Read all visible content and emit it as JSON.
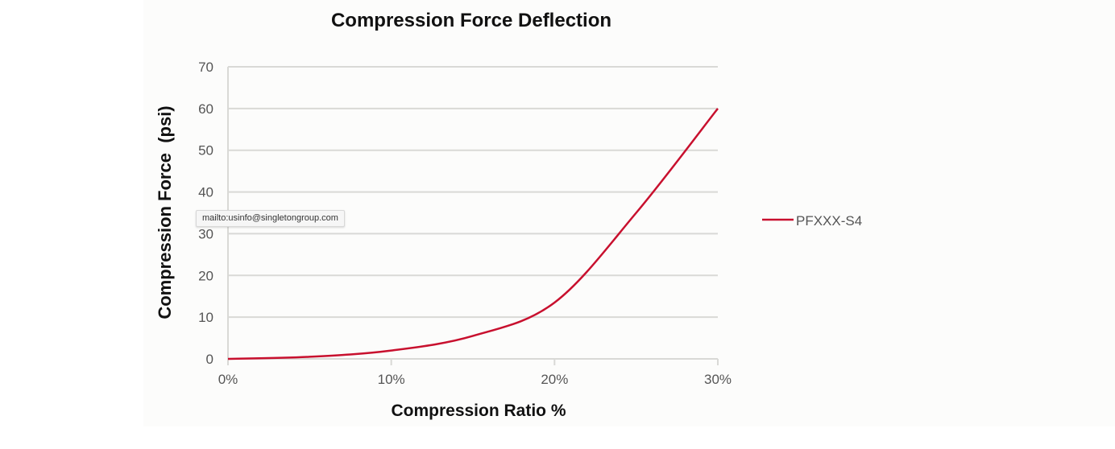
{
  "chart_data": {
    "type": "line",
    "title": "Compression Force Deflection",
    "xlabel": "Compression Ratio %",
    "ylabel": "Compression Force  (psi)",
    "x": [
      0,
      5,
      10,
      15,
      20,
      25,
      30
    ],
    "x_tick_labels": [
      "0%",
      "10%",
      "20%",
      "30%"
    ],
    "x_ticks": [
      0,
      10,
      20,
      30
    ],
    "xlim": [
      0,
      30
    ],
    "y_ticks": [
      0,
      10,
      20,
      30,
      40,
      50,
      60,
      70
    ],
    "y_tick_labels": [
      "0",
      "10",
      "20",
      "30",
      "40",
      "50",
      "60",
      "70"
    ],
    "ylim": [
      0,
      70
    ],
    "grid": "horizontal",
    "legend_position": "right",
    "series": [
      {
        "name": "PFXXX-S4",
        "color": "#c8102e",
        "values": [
          0,
          0.5,
          2,
          5.5,
          13.5,
          35,
          60
        ],
        "smooth": true
      }
    ]
  },
  "tooltip": {
    "text": "mailto:usinfo@singletongroup.com"
  }
}
